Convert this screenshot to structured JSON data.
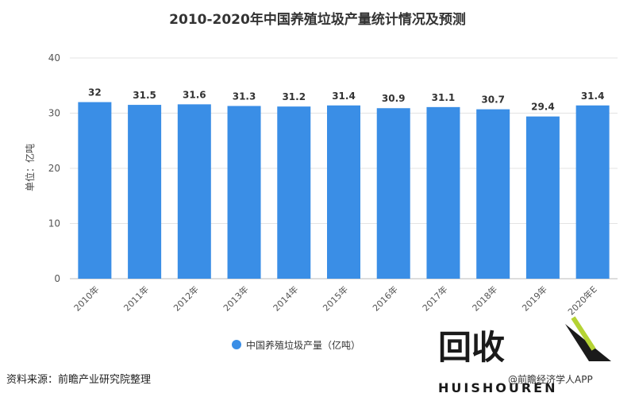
{
  "chart_data": {
    "type": "bar",
    "title": "2010-2020年中国养殖垃圾产量统计情况及预测",
    "ylabel": "单位：亿吨",
    "categories": [
      "2010年",
      "2011年",
      "2012年",
      "2013年",
      "2014年",
      "2015年",
      "2016年",
      "2017年",
      "2018年",
      "2019年",
      "2020年E"
    ],
    "series": [
      {
        "name": "中国养殖垃圾产量（亿吨）",
        "values": [
          32,
          31.5,
          31.6,
          31.3,
          31.2,
          31.4,
          30.9,
          31.1,
          30.7,
          29.4,
          31.4
        ],
        "labels": [
          "32",
          "31.5",
          "31.6",
          "31.3",
          "31.2",
          "31.4",
          "30.9",
          "31.1",
          "30.7",
          "29.4",
          "31.4"
        ],
        "color": "#3a8ee6"
      }
    ],
    "ylim": [
      0,
      40
    ],
    "yticks": [
      "0",
      "10",
      "20",
      "30",
      "40"
    ],
    "grid": true,
    "legend": "bottom-center"
  },
  "footer": {
    "source": "资料来源：前瞻产业研究院整理",
    "credit": "@前瞻经济学人APP"
  },
  "logo": {
    "text_cn": "回收",
    "text_en": "HUISHOUREN",
    "color": "#1a1a1a",
    "accent": "#b5d334"
  }
}
